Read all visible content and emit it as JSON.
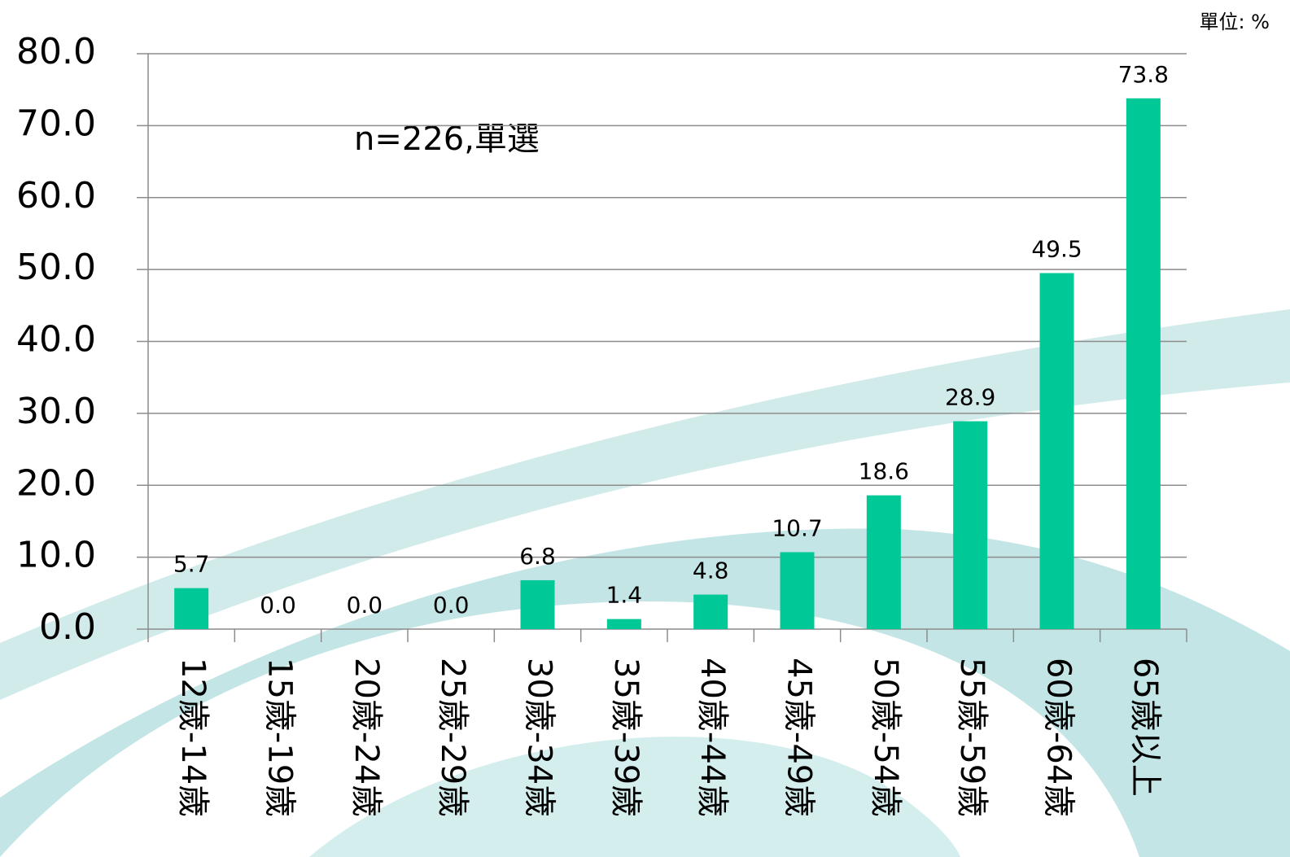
{
  "chart_data": {
    "type": "bar",
    "unit_label": "單位: %",
    "annotation": "n=226,單選",
    "categories": [
      "12歲-14歲",
      "15歲-19歲",
      "20歲-24歲",
      "25歲-29歲",
      "30歲-34歲",
      "35歲-39歲",
      "40歲-44歲",
      "45歲-49歲",
      "50歲-54歲",
      "55歲-59歲",
      "60歲-64歲",
      "65歲以上"
    ],
    "values": [
      5.7,
      0,
      0,
      0,
      6.8,
      1.4,
      4.8,
      10.7,
      18.6,
      28.9,
      49.5,
      73.8
    ],
    "value_labels": [
      "5.7",
      "0.0",
      "0.0",
      "0.0",
      "6.8",
      "1.4",
      "4.8",
      "10.7",
      "18.6",
      "28.9",
      "49.5",
      "73.8"
    ],
    "color": "#00c896",
    "ylim": [
      0,
      80
    ],
    "yticks": [
      {
        "value": 0,
        "label": "0.0"
      },
      {
        "value": 10,
        "label": "10.0"
      },
      {
        "value": 20,
        "label": "20.0"
      },
      {
        "value": 30,
        "label": "30.0"
      },
      {
        "value": 40,
        "label": "40.0"
      },
      {
        "value": 50,
        "label": "50.0"
      },
      {
        "value": 60,
        "label": "60.0"
      },
      {
        "value": 70,
        "label": "70.0"
      },
      {
        "value": 80,
        "label": "80.0"
      }
    ],
    "grid": true
  }
}
